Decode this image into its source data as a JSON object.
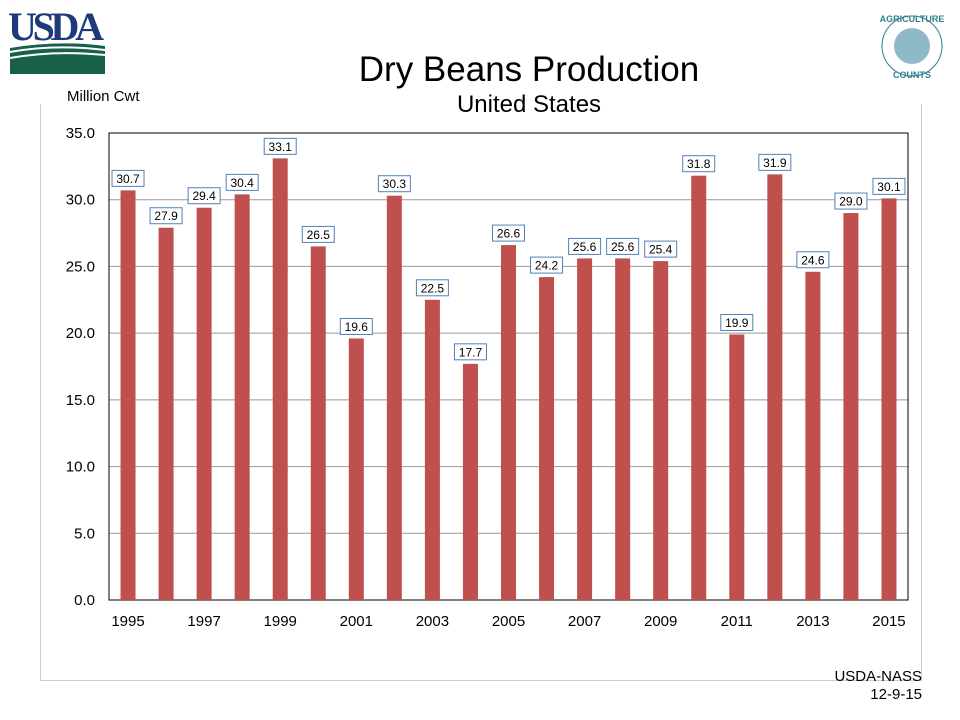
{
  "logo_left": "USDA",
  "logo_right": "AGRICULTURE COUNTS",
  "footer": {
    "source": "USDA-NASS",
    "date": "12-9-15"
  },
  "colors": {
    "bar": "#c0504d",
    "label_border": "#4f81bd",
    "grid": "#999999",
    "usda_blue": "#1f3a7a",
    "usda_green": "#17604a"
  },
  "chart_data": {
    "type": "bar",
    "title": "Dry Beans Production",
    "subtitle": "United States",
    "ylabel": "Million Cwt",
    "xlabel": "",
    "ylim": [
      0,
      35
    ],
    "yticks": [
      "0.0",
      "5.0",
      "10.0",
      "15.0",
      "20.0",
      "25.0",
      "30.0",
      "35.0"
    ],
    "grid": true,
    "categories": [
      "1995",
      "1996",
      "1997",
      "1998",
      "1999",
      "2000",
      "2001",
      "2002",
      "2003",
      "2004",
      "2005",
      "2006",
      "2007",
      "2008",
      "2009",
      "2010",
      "2011",
      "2012",
      "2013",
      "2014",
      "2015"
    ],
    "xtick_labels": [
      "1995",
      "1997",
      "1999",
      "2001",
      "2003",
      "2005",
      "2007",
      "2009",
      "2011",
      "2013",
      "2015"
    ],
    "values": [
      30.7,
      27.9,
      29.4,
      30.4,
      33.1,
      26.5,
      19.6,
      30.3,
      22.5,
      17.7,
      26.6,
      24.2,
      25.6,
      25.6,
      25.4,
      31.8,
      19.9,
      31.9,
      24.6,
      29.0,
      30.1
    ]
  }
}
